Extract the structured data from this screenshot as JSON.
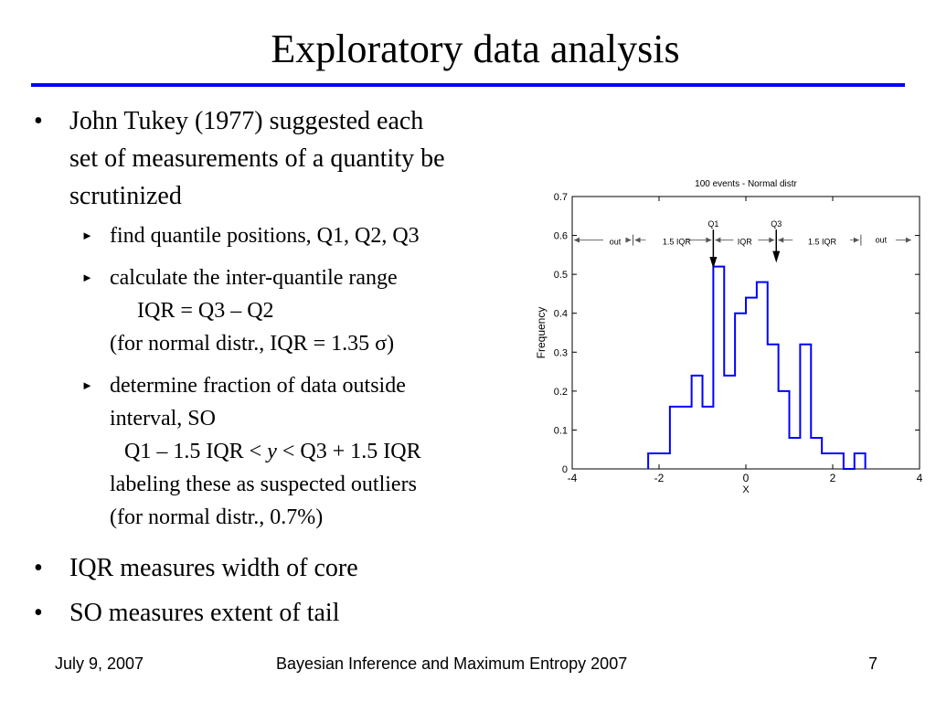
{
  "slide": {
    "title": "Exploratory data analysis",
    "bullets": [
      {
        "lines": [
          "John Tukey (1977) suggested each",
          "set of measurements of a quantity be",
          "scrutinized"
        ]
      },
      {
        "lines": [
          "IQR measures width of core"
        ]
      },
      {
        "lines": [
          "SO measures extent of tail"
        ]
      }
    ],
    "sub_bullets": [
      {
        "lines": [
          "find quantile positions, Q1, Q2, Q3"
        ]
      },
      {
        "lines": [
          "calculate the inter-quantile range",
          "IQR = Q3 – Q2",
          "(for normal distr., IQR = 1.35 σ)"
        ]
      },
      {
        "lines": [
          "determine fraction of data outside",
          "interval, SO",
          "Q1 – 1.5 IQR",
          "y",
          "Q3 + 1.5 IQR",
          "labeling these as suspected outliers",
          "(for normal distr., 0.7%)"
        ]
      }
    ],
    "symbols": {
      "lt": "<",
      "bullet": "•",
      "arrow": "►"
    },
    "footer": {
      "date": "July 9, 2007",
      "center": "Bayesian Inference and Maximum Entropy 2007",
      "page": "7"
    }
  },
  "chart_data": {
    "type": "histogram",
    "title": "100 events - Normal distr",
    "xlabel": "X",
    "ylabel": "Frequency",
    "xlim": [
      -4,
      4
    ],
    "ylim": [
      0,
      0.7
    ],
    "xticks": [
      -4,
      -2,
      0,
      2,
      4
    ],
    "yticks": [
      0,
      0.1,
      0.2,
      0.3,
      0.4,
      0.5,
      0.6,
      0.7
    ],
    "bin_edges": [
      -2.25,
      -1.75,
      -1.25,
      -1.0,
      -0.75,
      -0.5,
      -0.25,
      0.0,
      0.25,
      0.5,
      0.75,
      1.0,
      1.25,
      1.5,
      1.75,
      2.25,
      2.5,
      2.75
    ],
    "values": [
      0.04,
      0.16,
      0.24,
      0.16,
      0.52,
      0.24,
      0.4,
      0.44,
      0.48,
      0.32,
      0.2,
      0.08,
      0.32,
      0.08,
      0.04,
      0,
      0.04
    ],
    "annotations": {
      "Q1": -0.75,
      "Q3": 0.7,
      "lower_fence": -2.6,
      "upper_fence": 2.65,
      "labels": [
        "out",
        "1.5 IQR",
        "Q1",
        "IQR",
        "Q3",
        "1.5 IQR",
        "out"
      ]
    },
    "color": "#0000ff"
  }
}
